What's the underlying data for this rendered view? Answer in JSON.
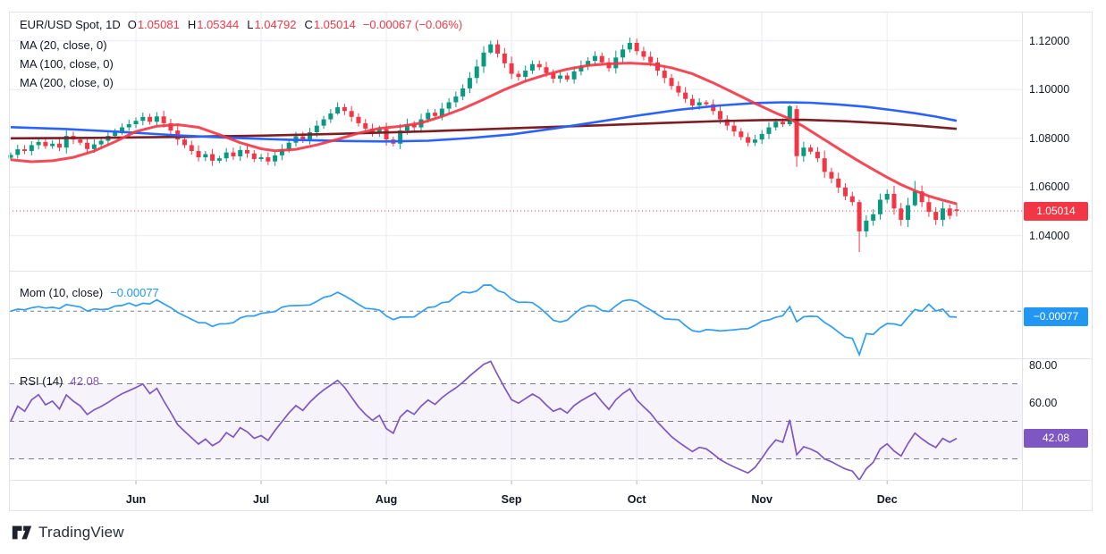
{
  "chart": {
    "symbol_line": {
      "symbol": "EUR/USD Spot, 1D",
      "ohlc": [
        {
          "label": "O",
          "value": "1.05081"
        },
        {
          "label": "H",
          "value": "1.05344"
        },
        {
          "label": "L",
          "value": "1.04792"
        },
        {
          "label": "C",
          "value": "1.05014"
        }
      ],
      "change": "−0.00067 (−0.06%)"
    },
    "ma_legend": [
      "MA (20, close, 0)",
      "MA (100, close, 0)",
      "MA (200, close, 0)"
    ],
    "mom_legend": {
      "label": "Mom (10, close)",
      "value": "−0.00077"
    },
    "rsi_legend": {
      "label": "RSI (14)",
      "value": "42.08"
    },
    "badges": {
      "price": "1.05014",
      "mom": "−0.00077",
      "rsi": "42.08"
    },
    "watermark": "TradingView"
  },
  "colors": {
    "up": "#089981",
    "down": "#f23645",
    "ma20": "#f23645",
    "ma100": "#2962ff",
    "ma200": "#7c1f24",
    "mom_line": "#2e9df4",
    "rsi_line": "#7e57c2",
    "rsi_band_fill": "rgba(126,87,194,0.07)",
    "dashed": "#787b86",
    "grid": "#e9ebf0",
    "frame": "#e0e3eb",
    "text": "#131722",
    "last_price_line": "#f23645"
  },
  "chart_data": {
    "type": "candlestick",
    "title": "EUR/USD Spot, 1D",
    "legend_ohlc": {
      "open": 1.05081,
      "high": 1.05344,
      "low": 1.04792,
      "close": 1.05014,
      "change": -0.00067,
      "change_pct": -0.06
    },
    "x_axis_months": [
      "Jun",
      "Jul",
      "Aug",
      "Sep",
      "Oct",
      "Nov",
      "Dec"
    ],
    "month_indices": [
      18,
      36,
      54,
      72,
      90,
      108,
      126
    ],
    "price_axis_ticks": [
      1.12,
      1.1,
      1.08,
      1.06,
      1.04
    ],
    "price_axis_tick_labels": [
      "1.12000",
      "1.10000",
      "1.08000",
      "1.06000",
      "1.04000"
    ],
    "ylim": [
      1.026,
      1.132
    ],
    "last_close": 1.05014,
    "candles": {
      "closes": [
        1.0732,
        1.0755,
        1.0748,
        1.0772,
        1.0785,
        1.0768,
        1.0778,
        1.0762,
        1.081,
        1.0795,
        1.0782,
        1.0756,
        1.0775,
        1.079,
        1.081,
        1.0828,
        1.0845,
        1.0858,
        1.0872,
        1.0888,
        1.0868,
        1.089,
        1.0862,
        1.0832,
        1.0795,
        1.0772,
        1.0748,
        1.0722,
        1.0735,
        1.0708,
        1.0718,
        1.0742,
        1.0726,
        1.0752,
        1.0738,
        1.0715,
        1.0722,
        1.0705,
        1.073,
        1.0755,
        1.0782,
        1.0808,
        1.0795,
        1.0825,
        1.0852,
        1.0878,
        1.0902,
        1.0928,
        1.0912,
        1.0888,
        1.0862,
        1.084,
        1.0822,
        1.0838,
        1.0795,
        1.0778,
        1.0832,
        1.0858,
        1.0845,
        1.0878,
        1.0905,
        1.0892,
        1.0922,
        1.0948,
        1.0972,
        1.1005,
        1.1048,
        1.1095,
        1.1152,
        1.1186,
        1.1148,
        1.1108,
        1.1065,
        1.1052,
        1.1078,
        1.1105,
        1.1092,
        1.1068,
        1.1045,
        1.1058,
        1.1042,
        1.1075,
        1.1098,
        1.1118,
        1.1138,
        1.1112,
        1.1088,
        1.1132,
        1.1165,
        1.1192,
        1.1158,
        1.1135,
        1.1112,
        1.1078,
        1.1048,
        1.1015,
        1.0988,
        1.0962,
        1.0935,
        1.0948,
        1.094,
        1.0912,
        1.0878,
        1.0852,
        1.0828,
        1.0805,
        1.0782,
        1.0795,
        1.0818,
        1.0845,
        1.0868,
        1.0858,
        1.0932,
        1.0727,
        1.0762,
        1.0745,
        1.0718,
        1.0662,
        1.0635,
        1.0598,
        1.0562,
        1.0538,
        1.0418,
        1.0462,
        1.0488,
        1.0548,
        1.0572,
        1.0512,
        1.0465,
        1.0525,
        1.0582,
        1.0538,
        1.0498,
        1.0465,
        1.0512,
        1.0482,
        1.05014
      ],
      "overrides": {
        "47": [
          1.0902,
          1.0948,
          1.0896,
          1.0928
        ],
        "69": [
          1.1152,
          1.1201,
          1.1146,
          1.1186
        ],
        "89": [
          1.1165,
          1.1214,
          1.1152,
          1.1192
        ],
        "112": [
          1.0858,
          1.0937,
          1.085,
          1.0932
        ],
        "113": [
          1.092,
          1.0935,
          1.0683,
          1.0727
        ],
        "122": [
          1.0538,
          1.0548,
          1.0333,
          1.0418
        ],
        "130": [
          1.0525,
          1.0625,
          1.052,
          1.0582
        ],
        "136": [
          1.05081,
          1.05344,
          1.04792,
          1.05014
        ]
      }
    },
    "ma20": {
      "period": 20,
      "points": [
        [
          0,
          1.0712
        ],
        [
          3,
          1.0704
        ],
        [
          6,
          1.0708
        ],
        [
          9,
          1.0722
        ],
        [
          12,
          1.0748
        ],
        [
          15,
          1.0786
        ],
        [
          18,
          1.0828
        ],
        [
          21,
          1.085
        ],
        [
          24,
          1.0856
        ],
        [
          27,
          1.0845
        ],
        [
          30,
          1.0815
        ],
        [
          33,
          1.0782
        ],
        [
          36,
          1.0757
        ],
        [
          38,
          1.0749
        ],
        [
          41,
          1.0755
        ],
        [
          44,
          1.0773
        ],
        [
          47,
          1.0796
        ],
        [
          50,
          1.0821
        ],
        [
          53,
          1.0841
        ],
        [
          56,
          1.0849
        ],
        [
          59,
          1.0863
        ],
        [
          62,
          1.089
        ],
        [
          65,
          1.0922
        ],
        [
          68,
          1.096
        ],
        [
          71,
          1.1
        ],
        [
          74,
          1.1035
        ],
        [
          77,
          1.1062
        ],
        [
          80,
          1.1084
        ],
        [
          83,
          1.1099
        ],
        [
          86,
          1.1106
        ],
        [
          89,
          1.1109
        ],
        [
          92,
          1.1105
        ],
        [
          95,
          1.109
        ],
        [
          98,
          1.1065
        ],
        [
          101,
          1.1028
        ],
        [
          104,
          1.0986
        ],
        [
          107,
          1.0944
        ],
        [
          110,
          1.0904
        ],
        [
          112,
          1.088
        ],
        [
          114,
          1.0848
        ],
        [
          116,
          1.0812
        ],
        [
          118,
          1.0776
        ],
        [
          120,
          1.074
        ],
        [
          122,
          1.0705
        ],
        [
          124,
          1.0672
        ],
        [
          126,
          1.064
        ],
        [
          128,
          1.061
        ],
        [
          130,
          1.0585
        ],
        [
          132,
          1.0563
        ],
        [
          134,
          1.0546
        ],
        [
          136,
          1.0531
        ]
      ]
    },
    "ma100": {
      "period": 100,
      "points": [
        [
          0,
          1.0846
        ],
        [
          8,
          1.0838
        ],
        [
          16,
          1.0826
        ],
        [
          24,
          1.0812
        ],
        [
          32,
          1.0802
        ],
        [
          40,
          1.0794
        ],
        [
          48,
          1.0789
        ],
        [
          54,
          1.0787
        ],
        [
          60,
          1.079
        ],
        [
          66,
          1.0801
        ],
        [
          72,
          1.0816
        ],
        [
          78,
          1.084
        ],
        [
          84,
          1.0866
        ],
        [
          90,
          1.0893
        ],
        [
          96,
          1.0917
        ],
        [
          102,
          1.0935
        ],
        [
          107,
          1.0945
        ],
        [
          111,
          1.0948
        ],
        [
          115,
          1.0946
        ],
        [
          119,
          1.0939
        ],
        [
          123,
          1.0929
        ],
        [
          127,
          1.0915
        ],
        [
          130,
          1.0903
        ],
        [
          133,
          1.0889
        ],
        [
          136,
          1.0872
        ]
      ]
    },
    "ma200": {
      "period": 200,
      "points": [
        [
          0,
          1.08
        ],
        [
          12,
          1.0802
        ],
        [
          24,
          1.0806
        ],
        [
          36,
          1.0811
        ],
        [
          48,
          1.0819
        ],
        [
          60,
          1.0829
        ],
        [
          72,
          1.0841
        ],
        [
          84,
          1.0853
        ],
        [
          94,
          1.0863
        ],
        [
          102,
          1.0871
        ],
        [
          108,
          1.0875
        ],
        [
          114,
          1.0876
        ],
        [
          120,
          1.087
        ],
        [
          126,
          1.0861
        ],
        [
          131,
          1.0851
        ],
        [
          136,
          1.0839
        ]
      ]
    },
    "momentum": {
      "period": 10,
      "last_value": -0.00077
    },
    "rsi": {
      "period": 14,
      "last_value": 42.08,
      "levels": [
        70,
        50,
        30
      ],
      "axis_ticks": [
        80,
        60
      ],
      "axis_tick_labels": [
        "80.00",
        "60.00"
      ]
    }
  }
}
